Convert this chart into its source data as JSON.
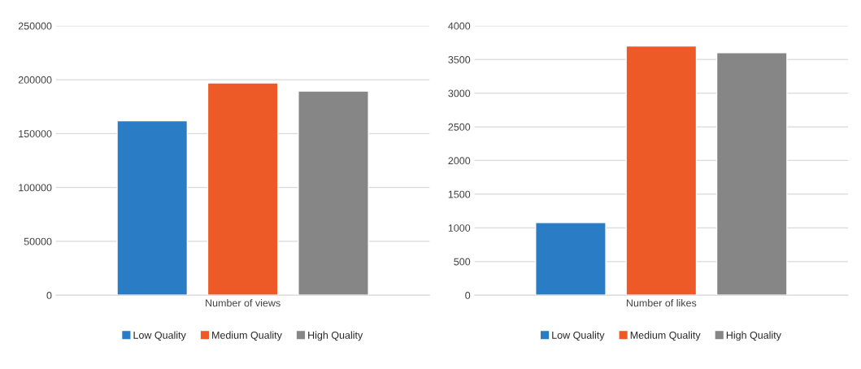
{
  "chart_data": [
    {
      "type": "bar",
      "categories": [
        "Number of views"
      ],
      "series": [
        {
          "name": "Low Quality",
          "color": "#2a7dc4",
          "values": [
            162000
          ]
        },
        {
          "name": "Medium Quality",
          "color": "#ee5a27",
          "values": [
            197000
          ]
        },
        {
          "name": "High Quality",
          "color": "#868686",
          "values": [
            189500
          ]
        }
      ],
      "ylim": [
        0,
        250000
      ],
      "yticks": [
        0,
        50000,
        100000,
        150000,
        200000,
        250000
      ],
      "grid": "y",
      "legend": "bottom"
    },
    {
      "type": "bar",
      "categories": [
        "Number of likes"
      ],
      "series": [
        {
          "name": "Low Quality",
          "color": "#2a7dc4",
          "values": [
            1080
          ]
        },
        {
          "name": "Medium Quality",
          "color": "#ee5a27",
          "values": [
            3700
          ]
        },
        {
          "name": "High Quality",
          "color": "#868686",
          "values": [
            3600
          ]
        }
      ],
      "ylim": [
        0,
        4000
      ],
      "yticks": [
        0,
        500,
        1000,
        1500,
        2000,
        2500,
        3000,
        3500,
        4000
      ],
      "grid": "y",
      "legend": "bottom"
    }
  ]
}
